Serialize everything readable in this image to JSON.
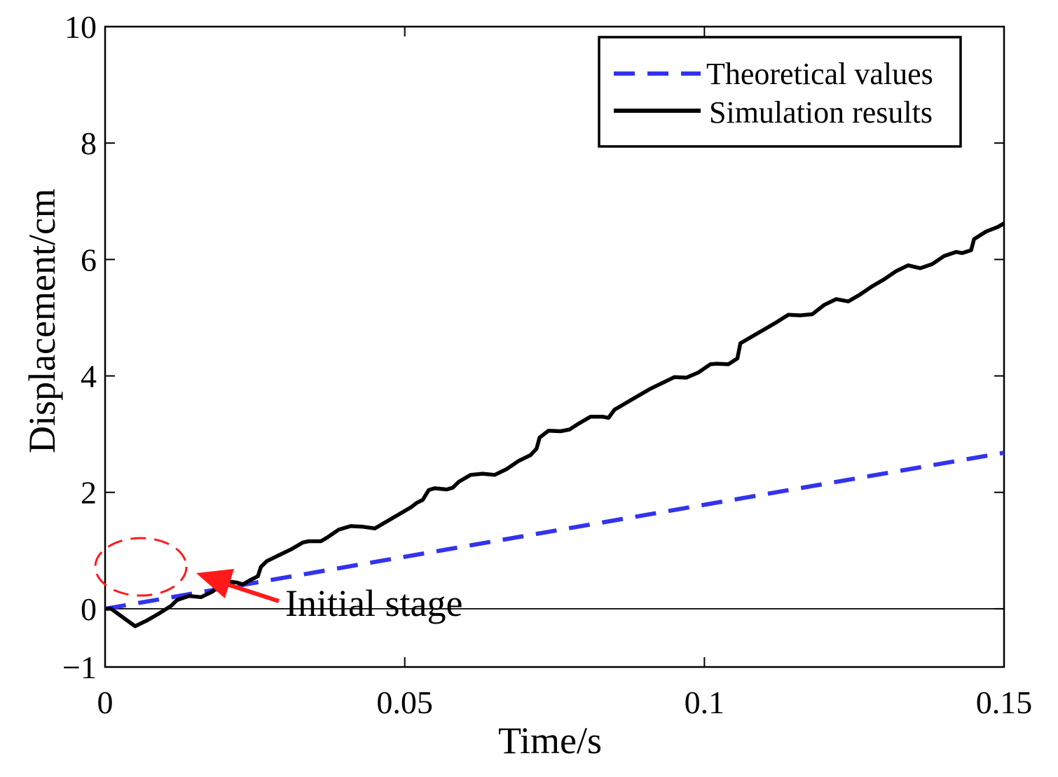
{
  "chart_data": {
    "type": "line",
    "title": "",
    "xlabel": "Time/s",
    "ylabel": "Displacement/cm",
    "xlim": [
      0,
      0.15
    ],
    "ylim": [
      -1,
      10
    ],
    "x_ticks": [
      0,
      0.05,
      0.1,
      0.15
    ],
    "x_tick_labels": [
      "0",
      "0.05",
      "0.1",
      "0.15"
    ],
    "y_ticks": [
      -1,
      0,
      2,
      4,
      6,
      8,
      10
    ],
    "y_tick_labels": [
      "−1",
      "0",
      "2",
      "4",
      "6",
      "8",
      "10"
    ],
    "reference_line_y": 0,
    "legend_position": "top-right",
    "colors": {
      "theoretical": "#3333ee",
      "simulation": "#000000",
      "annotation": "#ff1a1a"
    },
    "series": [
      {
        "name": "Theoretical values",
        "style": "dashed",
        "x": [
          0,
          0.15
        ],
        "y": [
          0,
          2.68
        ]
      },
      {
        "name": "Simulation results",
        "style": "solid",
        "x": [
          0,
          0.001,
          0.003,
          0.005,
          0.007,
          0.009,
          0.011,
          0.012,
          0.014,
          0.016,
          0.018,
          0.019,
          0.0205,
          0.022,
          0.023,
          0.024,
          0.0255,
          0.026,
          0.027,
          0.029,
          0.031,
          0.033,
          0.034,
          0.036,
          0.037,
          0.039,
          0.041,
          0.043,
          0.045,
          0.047,
          0.049,
          0.051,
          0.052,
          0.053,
          0.054,
          0.055,
          0.057,
          0.058,
          0.059,
          0.061,
          0.063,
          0.065,
          0.067,
          0.069,
          0.071,
          0.072,
          0.0725,
          0.074,
          0.076,
          0.0775,
          0.079,
          0.081,
          0.083,
          0.084,
          0.085,
          0.087,
          0.089,
          0.091,
          0.093,
          0.095,
          0.097,
          0.099,
          0.101,
          0.102,
          0.104,
          0.1055,
          0.106,
          0.108,
          0.11,
          0.112,
          0.114,
          0.116,
          0.118,
          0.12,
          0.122,
          0.124,
          0.126,
          0.128,
          0.13,
          0.132,
          0.134,
          0.136,
          0.138,
          0.14,
          0.142,
          0.143,
          0.1445,
          0.145,
          0.147,
          0.149,
          0.15
        ],
        "y": [
          0,
          0.0,
          -0.15,
          -0.3,
          -0.2,
          -0.08,
          0.05,
          0.15,
          0.22,
          0.2,
          0.3,
          0.42,
          0.47,
          0.45,
          0.42,
          0.48,
          0.56,
          0.72,
          0.82,
          0.92,
          1.02,
          1.14,
          1.16,
          1.16,
          1.22,
          1.36,
          1.42,
          1.41,
          1.38,
          1.5,
          1.62,
          1.74,
          1.82,
          1.87,
          2.04,
          2.07,
          2.05,
          2.08,
          2.18,
          2.3,
          2.32,
          2.3,
          2.4,
          2.54,
          2.64,
          2.75,
          2.94,
          3.06,
          3.05,
          3.08,
          3.18,
          3.3,
          3.3,
          3.28,
          3.42,
          3.54,
          3.66,
          3.78,
          3.88,
          3.98,
          3.97,
          4.06,
          4.2,
          4.21,
          4.2,
          4.3,
          4.56,
          4.68,
          4.8,
          4.92,
          5.05,
          5.04,
          5.06,
          5.22,
          5.32,
          5.28,
          5.4,
          5.54,
          5.66,
          5.8,
          5.9,
          5.85,
          5.92,
          6.06,
          6.13,
          6.11,
          6.16,
          6.35,
          6.48,
          6.56,
          6.62
        ]
      }
    ],
    "annotations": [
      {
        "text": "Initial stage",
        "target_x": 0.005,
        "target_y": -0.25
      }
    ]
  }
}
